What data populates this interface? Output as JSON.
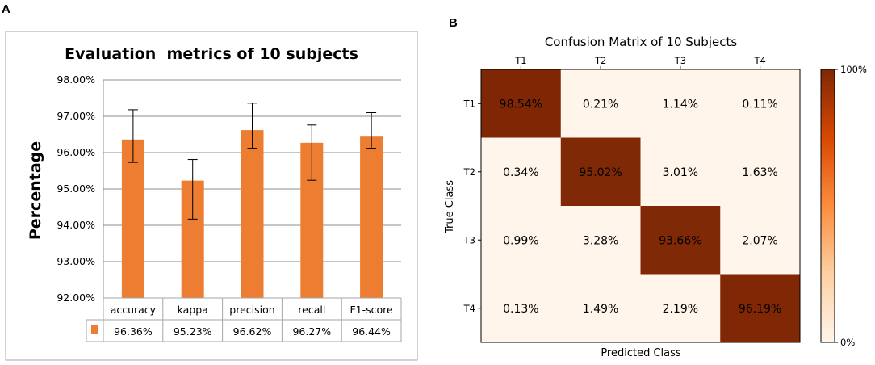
{
  "panels": {
    "a_letter": "A",
    "b_letter": "B"
  },
  "colors": {
    "bar": "#ED7D31",
    "grid": "#8c8c8c",
    "frame": "#a6a6a6",
    "cm_high": "#7f2704",
    "cm_low": "#fff5eb"
  },
  "chart_data": [
    {
      "type": "bar",
      "title": "Evaluation  metrics of 10 subjects",
      "xlabel": "",
      "ylabel": "Percentage",
      "ylim": [
        92,
        98
      ],
      "yticks": [
        "92.00%",
        "93.00%",
        "94.00%",
        "95.00%",
        "96.00%",
        "97.00%",
        "98.00%"
      ],
      "categories": [
        "accuracy",
        "kappa",
        "precision",
        "recall",
        "F1-score"
      ],
      "values": [
        96.36,
        95.23,
        96.62,
        96.27,
        96.44
      ],
      "error_low": [
        95.73,
        94.17,
        96.12,
        95.24,
        96.12
      ],
      "error_high": [
        97.18,
        95.81,
        97.36,
        96.76,
        97.1
      ],
      "data_table": [
        "96.36%",
        "95.23%",
        "96.62%",
        "96.27%",
        "96.44%"
      ],
      "grid": true
    },
    {
      "type": "heatmap",
      "title": "Confusion Matrix of 10 Subjects",
      "xlabel": "Predicted Class",
      "ylabel": "True Class",
      "x_ticks": [
        "T1",
        "T2",
        "T3",
        "T4"
      ],
      "y_ticks": [
        "T1",
        "T2",
        "T3",
        "T4"
      ],
      "values": [
        [
          98.54,
          0.21,
          1.14,
          0.11
        ],
        [
          0.34,
          95.02,
          3.01,
          1.63
        ],
        [
          0.99,
          3.28,
          93.66,
          2.07
        ],
        [
          0.13,
          1.49,
          2.19,
          96.19
        ]
      ],
      "cell_labels": [
        [
          "98.54%",
          "0.21%",
          "1.14%",
          "0.11%"
        ],
        [
          "0.34%",
          "95.02%",
          "3.01%",
          "1.63%"
        ],
        [
          "0.99%",
          "3.28%",
          "93.66%",
          "2.07%"
        ],
        [
          "0.13%",
          "1.49%",
          "2.19%",
          "96.19%"
        ]
      ],
      "colorbar": {
        "max_label": "100%",
        "min_label": "0%",
        "range": [
          0,
          100
        ]
      }
    }
  ]
}
